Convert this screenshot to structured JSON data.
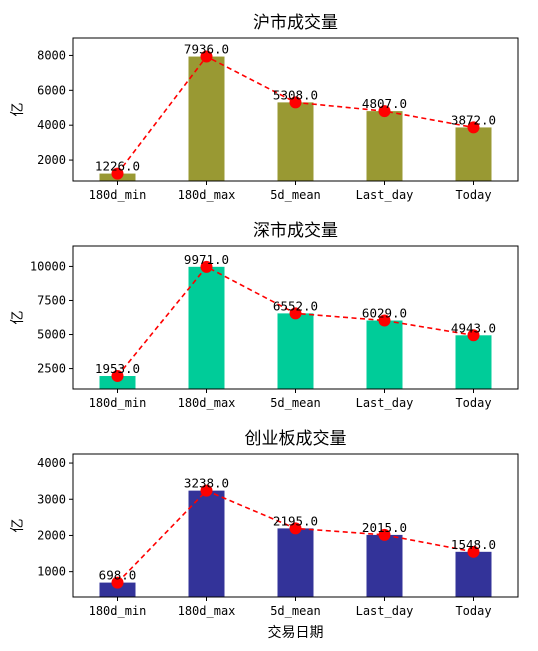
{
  "chart_data": [
    {
      "type": "bar",
      "title": "沪市成交量",
      "ylabel": "亿",
      "xlabel": "",
      "categories": [
        "180d_min",
        "180d_max",
        "5d_mean",
        "Last_day",
        "Today"
      ],
      "values": [
        1226.0,
        7936.0,
        5308.0,
        4807.0,
        3872.0
      ],
      "data_labels": [
        "1226.0",
        "7936.0",
        "5308.0",
        "4807.0",
        "3872.0"
      ],
      "yticks": [
        "2000",
        "4000",
        "6000",
        "8000"
      ],
      "ytick_values": [
        2000,
        4000,
        6000,
        8000
      ],
      "ylim": [
        800,
        9000
      ],
      "bar_color": "#999933",
      "line": {
        "style": "dashed",
        "color": "#ff0000",
        "marker": "circle"
      },
      "grid": false
    },
    {
      "type": "bar",
      "title": "深市成交量",
      "ylabel": "亿",
      "xlabel": "",
      "categories": [
        "180d_min",
        "180d_max",
        "5d_mean",
        "Last_day",
        "Today"
      ],
      "values": [
        1953.0,
        9971.0,
        6552.0,
        6029.0,
        4943.0
      ],
      "data_labels": [
        "1953.0",
        "9971.0",
        "6552.0",
        "6029.0",
        "4943.0"
      ],
      "yticks": [
        "2500",
        "5000",
        "7500",
        "10000"
      ],
      "ytick_values": [
        2500,
        5000,
        7500,
        10000
      ],
      "ylim": [
        1000,
        11500
      ],
      "bar_color": "#00cc99",
      "line": {
        "style": "dashed",
        "color": "#ff0000",
        "marker": "circle"
      },
      "grid": false
    },
    {
      "type": "bar",
      "title": "创业板成交量",
      "ylabel": "亿",
      "xlabel": "交易日期",
      "categories": [
        "180d_min",
        "180d_max",
        "5d_mean",
        "Last_day",
        "Today"
      ],
      "values": [
        698.0,
        3238.0,
        2195.0,
        2015.0,
        1548.0
      ],
      "data_labels": [
        "698.0",
        "3238.0",
        "2195.0",
        "2015.0",
        "1548.0"
      ],
      "yticks": [
        "1000",
        "2000",
        "3000",
        "4000"
      ],
      "ytick_values": [
        1000,
        2000,
        3000,
        4000
      ],
      "ylim": [
        300,
        4250
      ],
      "bar_color": "#333399",
      "line": {
        "style": "dashed",
        "color": "#ff0000",
        "marker": "circle"
      },
      "grid": false
    }
  ]
}
